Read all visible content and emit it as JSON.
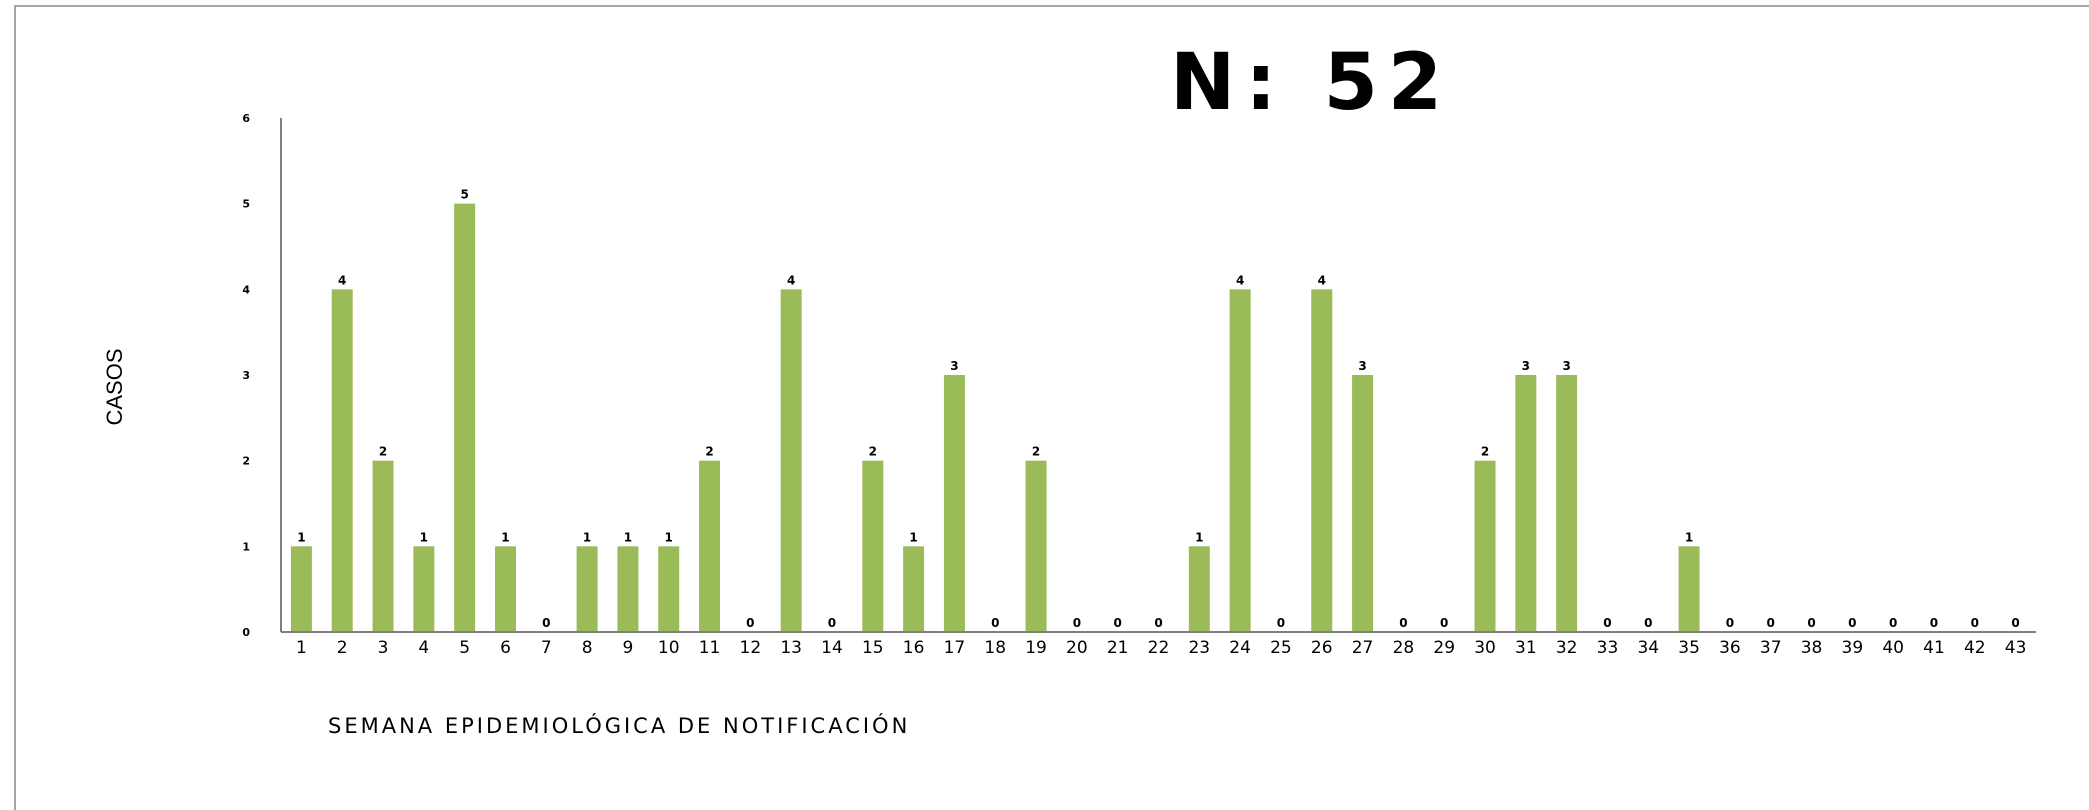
{
  "chart_data": {
    "type": "bar",
    "title": "N: 52",
    "xlabel": "SEMANA EPIDEMIOLÓGICA DE NOTIFICACIÓN",
    "ylabel": "CASOS",
    "ylim": [
      0,
      6
    ],
    "yticks": [
      "0",
      "1",
      "2",
      "3",
      "4",
      "5",
      "6"
    ],
    "grid": false,
    "bar_color": "#9bbb59",
    "categories": [
      "1",
      "2",
      "3",
      "4",
      "5",
      "6",
      "7",
      "8",
      "9",
      "10",
      "11",
      "12",
      "13",
      "14",
      "15",
      "16",
      "17",
      "18",
      "19",
      "20",
      "21",
      "22",
      "23",
      "24",
      "25",
      "26",
      "27",
      "28",
      "29",
      "30",
      "31",
      "32",
      "33",
      "34",
      "35",
      "36",
      "37",
      "38",
      "39",
      "40",
      "41",
      "42",
      "43"
    ],
    "values": [
      1,
      4,
      2,
      1,
      5,
      1,
      0,
      1,
      1,
      1,
      2,
      0,
      4,
      0,
      2,
      1,
      3,
      0,
      2,
      0,
      0,
      0,
      1,
      4,
      0,
      4,
      3,
      0,
      0,
      2,
      3,
      3,
      0,
      0,
      1,
      0,
      0,
      0,
      0,
      0,
      0,
      0,
      0
    ]
  }
}
